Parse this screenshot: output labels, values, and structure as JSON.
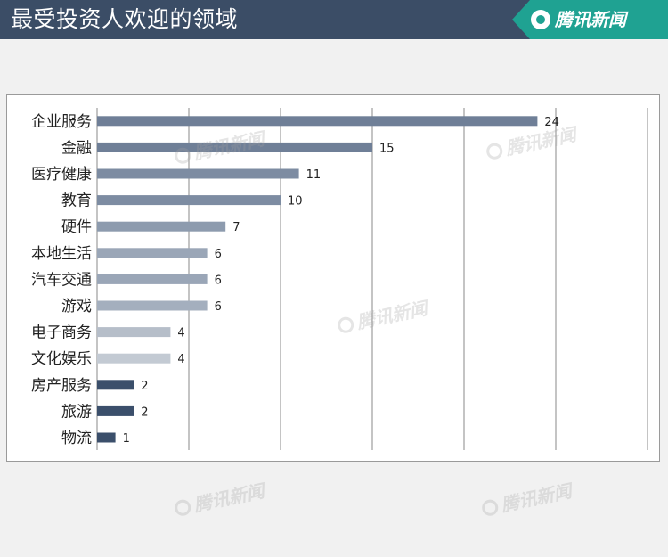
{
  "header": {
    "title": "最受投资人欢迎的领域",
    "brand": "腾讯新闻"
  },
  "watermark_text": "腾讯新闻",
  "chart_data": {
    "type": "bar",
    "orientation": "horizontal",
    "title": "",
    "xlabel": "",
    "ylabel": "",
    "xlim": [
      0,
      30
    ],
    "grid": true,
    "legend": "none",
    "categories": [
      "企业服务",
      "金融",
      "医疗健康",
      "教育",
      "硬件",
      "本地生活",
      "汽车交通",
      "游戏",
      "电子商务",
      "文化娱乐",
      "房产服务",
      "旅游",
      "物流"
    ],
    "values": [
      24,
      15,
      11,
      10,
      7,
      6,
      6,
      6,
      4,
      4,
      2,
      2,
      1
    ],
    "bar_colors": [
      "#6f7f97",
      "#6f7f97",
      "#7d8ca2",
      "#7d8ca2",
      "#8d9bae",
      "#9aa6b7",
      "#9aa6b7",
      "#a4afbe",
      "#b6bec9",
      "#c3cad3",
      "#3b4f6b",
      "#3b4f6b",
      "#3b4f6b"
    ],
    "value_labels": [
      "24",
      "15",
      "11",
      "10",
      "7",
      "6",
      "6",
      "6",
      "4",
      "4",
      "2",
      "2",
      "1"
    ]
  }
}
